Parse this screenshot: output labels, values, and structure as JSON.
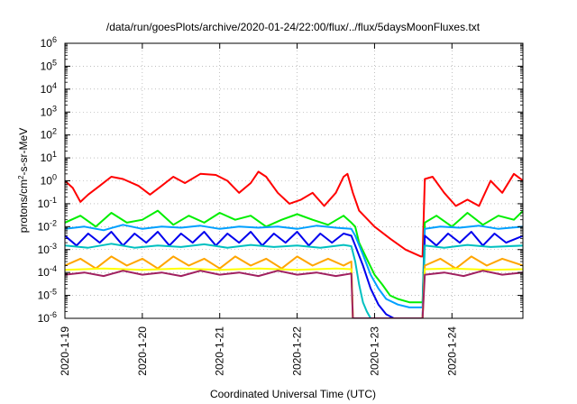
{
  "chart_data": {
    "type": "line",
    "title": "/data/run/goesPlots/archive/2020-01-24/22:00/flux/../flux/5daysMoonFluxes.txt",
    "xlabel": "Coordinated Universal Time (UTC)",
    "ylabel_parts": [
      "protons/cm",
      "2",
      "-s-sr-MeV"
    ],
    "xlim": [
      "2020-01-19 00:00",
      "2020-01-24 22:00"
    ],
    "ylim": [
      1e-06,
      1000000
    ],
    "yscale": "log",
    "grid": true,
    "x_ticks": [
      "2020-1-19",
      "2020-1-20",
      "2020-1-21",
      "2020-1-22",
      "2020-1-23",
      "2020-1-24"
    ],
    "y_ticks": [
      {
        "base": "10",
        "exp": "-6"
      },
      {
        "base": "10",
        "exp": "-5"
      },
      {
        "base": "10",
        "exp": "-4"
      },
      {
        "base": "10",
        "exp": "-3"
      },
      {
        "base": "10",
        "exp": "-2"
      },
      {
        "base": "10",
        "exp": "-1"
      },
      {
        "base": "10",
        "exp": "0"
      },
      {
        "base": "10",
        "exp": "1"
      },
      {
        "base": "10",
        "exp": "2"
      },
      {
        "base": "10",
        "exp": "3"
      },
      {
        "base": "10",
        "exp": "4"
      },
      {
        "base": "10",
        "exp": "5"
      },
      {
        "base": "10",
        "exp": "6"
      }
    ],
    "x_unit": "days",
    "series": [
      {
        "color": "#ff0000",
        "x": [
          0,
          0.1,
          0.2,
          0.3,
          0.45,
          0.6,
          0.75,
          0.95,
          1.1,
          1.25,
          1.4,
          1.55,
          1.75,
          1.95,
          2.1,
          2.25,
          2.4,
          2.5,
          2.6,
          2.75,
          2.9,
          3.05,
          3.2,
          3.35,
          3.5,
          3.6,
          3.65,
          3.72,
          3.8,
          4.0,
          4.2,
          4.4,
          4.6,
          4.62,
          4.65,
          4.75,
          4.9,
          5.05,
          5.2,
          5.35,
          5.5,
          5.65,
          5.8,
          5.92
        ],
        "y": [
          1.0,
          0.5,
          0.12,
          0.25,
          0.6,
          1.5,
          1.2,
          0.6,
          0.25,
          0.6,
          1.5,
          0.8,
          2.0,
          1.8,
          1.0,
          0.3,
          0.8,
          2.5,
          1.5,
          0.3,
          0.1,
          0.15,
          0.3,
          0.08,
          0.3,
          1.5,
          2.0,
          0.3,
          0.05,
          0.01,
          0.003,
          0.001,
          0.0005,
          0.0005,
          1.2,
          1.5,
          0.3,
          0.08,
          0.15,
          0.08,
          1.0,
          0.3,
          2.0,
          1.0
        ]
      },
      {
        "color": "#00ee00",
        "x": [
          0,
          0.2,
          0.4,
          0.6,
          0.8,
          1.0,
          1.2,
          1.4,
          1.6,
          1.8,
          2.0,
          2.2,
          2.4,
          2.6,
          2.8,
          3.0,
          3.2,
          3.4,
          3.6,
          3.7,
          3.75,
          3.8,
          3.9,
          4.0,
          4.1,
          4.2,
          4.3,
          4.45,
          4.6,
          4.62,
          4.65,
          4.8,
          5.0,
          5.2,
          5.4,
          5.6,
          5.8,
          5.92
        ],
        "y": [
          0.015,
          0.03,
          0.01,
          0.04,
          0.015,
          0.02,
          0.05,
          0.012,
          0.03,
          0.015,
          0.04,
          0.02,
          0.03,
          0.01,
          0.02,
          0.035,
          0.02,
          0.012,
          0.03,
          0.015,
          0.01,
          0.002,
          0.0004,
          8e-05,
          3e-05,
          1e-05,
          7e-06,
          5e-06,
          5e-06,
          5e-06,
          0.015,
          0.03,
          0.01,
          0.04,
          0.012,
          0.03,
          0.02,
          0.05
        ]
      },
      {
        "color": "#00a0ff",
        "x": [
          0,
          0.25,
          0.5,
          0.75,
          1.0,
          1.25,
          1.5,
          1.75,
          2.0,
          2.25,
          2.5,
          2.75,
          3.0,
          3.25,
          3.5,
          3.7,
          3.75,
          3.85,
          3.95,
          4.05,
          4.15,
          4.3,
          4.45,
          4.6,
          4.62,
          4.65,
          4.85,
          5.1,
          5.35,
          5.6,
          5.92
        ],
        "y": [
          0.008,
          0.01,
          0.007,
          0.012,
          0.008,
          0.01,
          0.009,
          0.011,
          0.008,
          0.01,
          0.009,
          0.01,
          0.008,
          0.011,
          0.009,
          0.008,
          0.004,
          0.0006,
          8e-05,
          2e-05,
          7e-06,
          4e-06,
          3e-06,
          3e-06,
          3e-06,
          0.008,
          0.01,
          0.009,
          0.011,
          0.008,
          0.01
        ]
      },
      {
        "color": "#0000ee",
        "x": [
          0,
          0.15,
          0.3,
          0.45,
          0.6,
          0.75,
          0.9,
          1.05,
          1.2,
          1.35,
          1.5,
          1.65,
          1.8,
          1.95,
          2.1,
          2.25,
          2.4,
          2.55,
          2.7,
          2.85,
          3.0,
          3.15,
          3.3,
          3.45,
          3.6,
          3.7,
          3.75,
          3.85,
          3.95,
          4.05,
          4.15,
          4.25,
          4.62,
          4.65,
          4.8,
          4.95,
          5.1,
          5.25,
          5.4,
          5.55,
          5.7,
          5.92
        ],
        "y": [
          0.004,
          0.0015,
          0.005,
          0.002,
          0.006,
          0.0015,
          0.005,
          0.002,
          0.006,
          0.0015,
          0.005,
          0.002,
          0.006,
          0.0015,
          0.005,
          0.002,
          0.006,
          0.0015,
          0.005,
          0.002,
          0.006,
          0.0015,
          0.005,
          0.002,
          0.005,
          0.004,
          0.0015,
          0.0002,
          2e-05,
          4e-06,
          1.5e-06,
          1e-06,
          1e-06,
          0.004,
          0.0015,
          0.005,
          0.002,
          0.006,
          0.0015,
          0.005,
          0.002,
          0.004
        ]
      },
      {
        "color": "#00c0c0",
        "x": [
          0,
          0.3,
          0.6,
          0.9,
          1.2,
          1.5,
          1.8,
          2.1,
          2.4,
          2.7,
          3.0,
          3.3,
          3.6,
          3.7,
          3.75,
          3.8,
          3.85,
          3.9,
          3.95,
          4.0,
          4.62,
          4.65,
          4.9,
          5.2,
          5.5,
          5.92
        ],
        "y": [
          0.0015,
          0.0012,
          0.0018,
          0.0012,
          0.0015,
          0.0013,
          0.0017,
          0.0012,
          0.0016,
          0.0013,
          0.0015,
          0.0012,
          0.0016,
          0.0014,
          0.0003,
          3e-05,
          5e-06,
          2e-06,
          1e-06,
          1e-06,
          1e-06,
          0.0015,
          0.0012,
          0.0016,
          0.0013,
          0.0015
        ]
      },
      {
        "color": "#ffa500",
        "x": [
          0,
          0.2,
          0.4,
          0.6,
          0.8,
          1.0,
          1.2,
          1.4,
          1.6,
          1.8,
          2.0,
          2.2,
          2.4,
          2.6,
          2.8,
          3.0,
          3.2,
          3.4,
          3.6,
          3.7,
          3.72,
          3.74,
          4.62,
          4.65,
          4.85,
          5.05,
          5.25,
          5.45,
          5.65,
          5.92
        ],
        "y": [
          0.0002,
          0.0004,
          0.00015,
          0.0005,
          0.0002,
          0.0004,
          0.00015,
          0.0005,
          0.0002,
          0.0004,
          0.00015,
          0.0005,
          0.0002,
          0.0004,
          0.00015,
          0.0005,
          0.0002,
          0.0004,
          0.0002,
          0.0003,
          1e-06,
          1e-06,
          1e-06,
          0.0002,
          0.0004,
          0.00015,
          0.0005,
          0.0002,
          0.0004,
          0.0002
        ]
      },
      {
        "color": "#ffff00",
        "x": [
          0,
          0.5,
          1.0,
          1.5,
          2.0,
          2.5,
          3.0,
          3.5,
          3.7,
          3.72,
          3.74,
          4.62,
          4.65,
          5.0,
          5.5,
          5.92
        ],
        "y": [
          0.00013,
          0.00015,
          0.00013,
          0.00015,
          0.00013,
          0.00015,
          0.00013,
          0.00015,
          0.00014,
          1e-06,
          1e-06,
          1e-06,
          0.00014,
          0.00015,
          0.00013,
          0.00014
        ]
      },
      {
        "color": "#a02060",
        "x": [
          0,
          0.25,
          0.5,
          0.75,
          1.0,
          1.25,
          1.5,
          1.75,
          2.0,
          2.25,
          2.5,
          2.75,
          3.0,
          3.25,
          3.5,
          3.7,
          3.72,
          3.74,
          4.62,
          4.65,
          4.9,
          5.15,
          5.4,
          5.65,
          5.92
        ],
        "y": [
          8e-05,
          0.0001,
          7e-05,
          0.00012,
          8e-05,
          0.0001,
          7e-05,
          0.00012,
          8e-05,
          0.0001,
          7e-05,
          0.00012,
          8e-05,
          0.0001,
          7e-05,
          9e-05,
          1e-06,
          1e-06,
          1e-06,
          8e-05,
          0.0001,
          7e-05,
          0.00012,
          8e-05,
          0.0001
        ]
      }
    ]
  }
}
